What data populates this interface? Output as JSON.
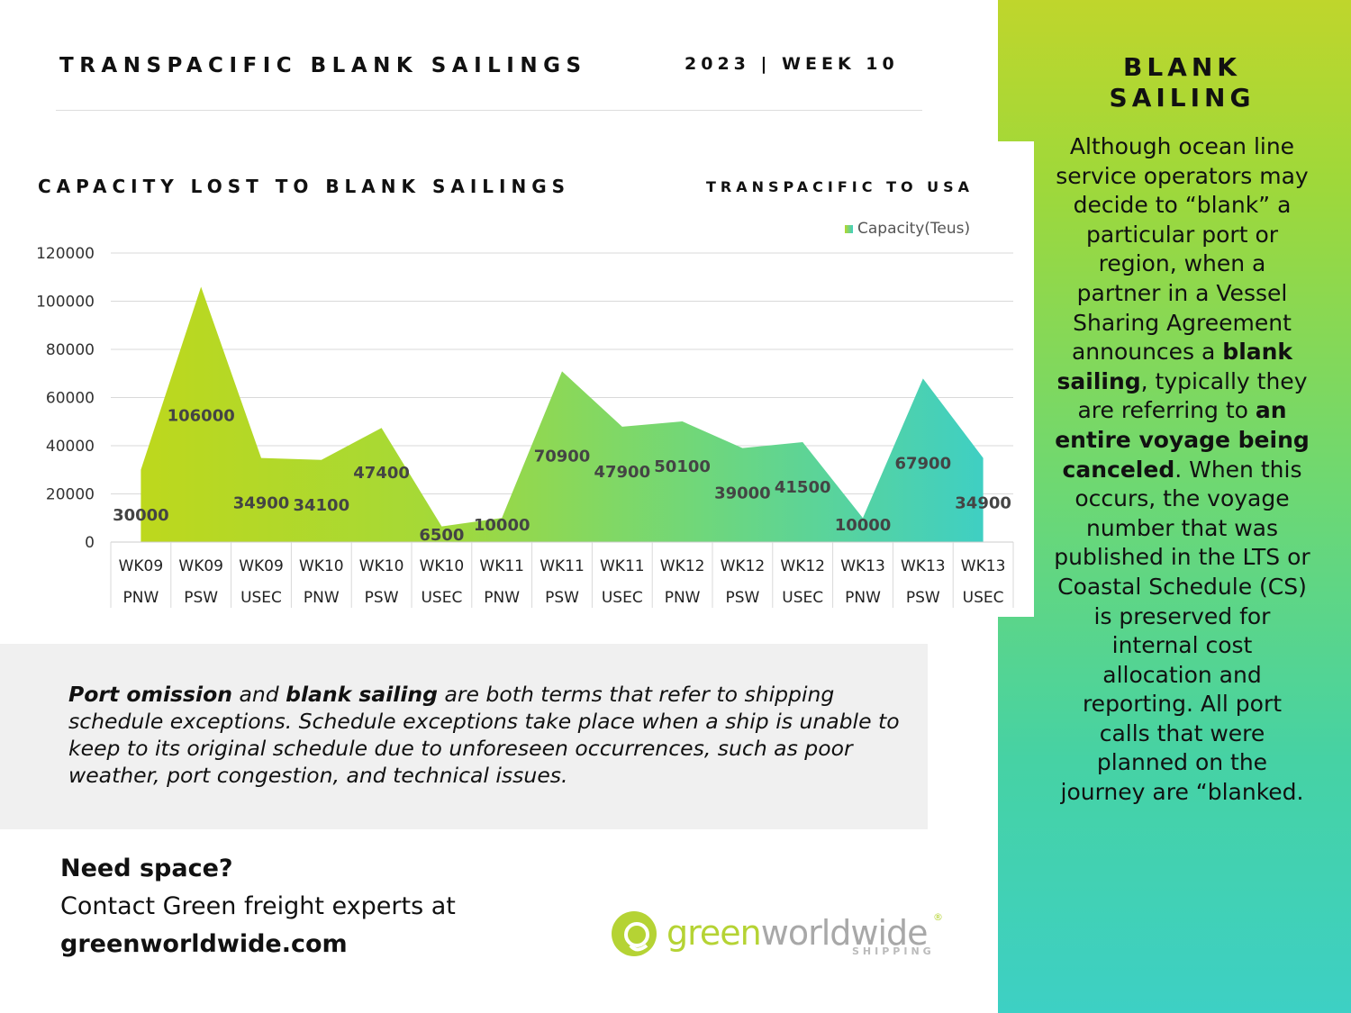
{
  "header": {
    "title": "TRANSPACIFIC BLANK SAILINGS",
    "week": "2023 | WEEK 10"
  },
  "sidebar": {
    "title_line1": "BLANK",
    "title_line2": "SAILING",
    "parts": [
      {
        "text": "Although ocean line service operators may decide to “blank” a particular port or region, when a partner in a Vessel Sharing Agreement announces a ",
        "bold": false
      },
      {
        "text": "blank sailing",
        "bold": true
      },
      {
        "text": ", typically they are referring to ",
        "bold": false
      },
      {
        "text": "an entire voyage being canceled",
        "bold": true
      },
      {
        "text": ". When this occurs, the voyage number that was published in the LTS or Coastal Schedule (CS) is preserved for internal cost allocation and reporting. All port calls that were planned on the journey are “blanked.",
        "bold": false
      }
    ]
  },
  "chart_data": {
    "type": "area",
    "title": "CAPACITY LOST TO BLANK SAILINGS",
    "subtitle": "TRANSPACIFIC TO USA",
    "categories": [
      [
        "WK09",
        "PNW"
      ],
      [
        "WK09",
        "PSW"
      ],
      [
        "WK09",
        "USEC"
      ],
      [
        "WK10",
        "PNW"
      ],
      [
        "WK10",
        "PSW"
      ],
      [
        "WK10",
        "USEC"
      ],
      [
        "WK11",
        "PNW"
      ],
      [
        "WK11",
        "PSW"
      ],
      [
        "WK11",
        "USEC"
      ],
      [
        "WK12",
        "PNW"
      ],
      [
        "WK12",
        "PSW"
      ],
      [
        "WK12",
        "USEC"
      ],
      [
        "WK13",
        "PNW"
      ],
      [
        "WK13",
        "PSW"
      ],
      [
        "WK13",
        "USEC"
      ]
    ],
    "series": [
      {
        "name": "Capacity(Teus)",
        "values": [
          30000,
          106000,
          34900,
          34100,
          47400,
          6500,
          10000,
          70900,
          47900,
          50100,
          39000,
          41500,
          10000,
          67900,
          34900
        ]
      }
    ],
    "data_labels": [
      "30000",
      "106000",
      "34900",
      "34100",
      "47400",
      "6500",
      "10000",
      "70900",
      "47900",
      "50100",
      "39000",
      "41500",
      "10000",
      "67900",
      "34900"
    ],
    "yticks": [
      "0",
      "20000",
      "40000",
      "60000",
      "80000",
      "100000",
      "120000"
    ],
    "ylim": [
      0,
      120000
    ],
    "grid": true,
    "legend_position": "top-right",
    "gradient_colors": [
      "#bdd81d",
      "#a6d936",
      "#6fd77b",
      "#3fcfc3"
    ]
  },
  "note": {
    "parts": [
      {
        "text": "Port omission",
        "bold": true
      },
      {
        "text": " and ",
        "bold": false
      },
      {
        "text": "blank sailing",
        "bold": true
      },
      {
        "text": " are both terms that refer to shipping schedule exceptions. Schedule exceptions take place when a ship is unable to keep to its original schedule due to unforeseen occurrences, such as poor weather, port congestion, and technical issues.",
        "bold": false
      }
    ]
  },
  "cta": {
    "heading": "Need space?",
    "line": "Contact Green freight experts at",
    "url": "greenworldwide.com"
  },
  "logo": {
    "word_green": "green",
    "word_dark": "worldwide",
    "registered": "®",
    "sub": "SHIPPING"
  }
}
